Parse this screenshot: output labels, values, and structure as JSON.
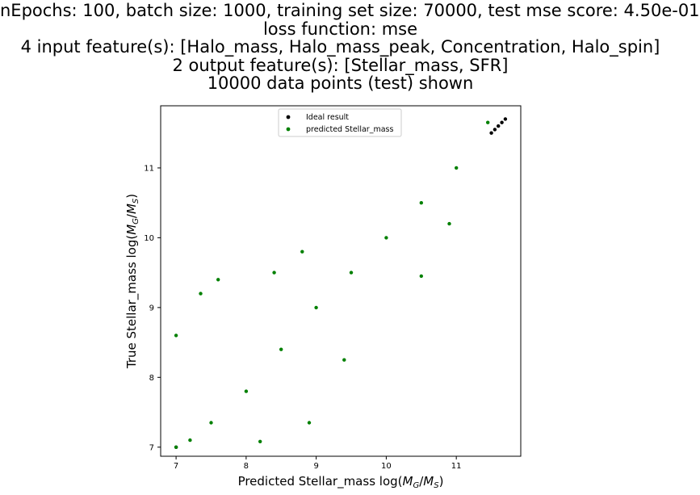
{
  "chart_data": {
    "type": "scatter",
    "title_lines": [
      "nEpochs: 100, batch size: 1000, training set size: 70000, test mse score: 4.50e-01",
      "loss function: mse",
      "4 input feature(s): [Halo_mass, Halo_mass_peak, Concentration, Halo_spin]",
      "2 output feature(s): [Stellar_mass, SFR]",
      "10000 data points (test) shown"
    ],
    "xlabel_prefix": "Predicted Stellar_mass log(",
    "ylabel_prefix": "True Stellar_mass log(",
    "label_unit": "M_G/M_S",
    "label_suffix": ")",
    "xlim": [
      6.78,
      11.92
    ],
    "ylim": [
      6.87,
      11.89
    ],
    "xticks": [
      7,
      8,
      9,
      10,
      11
    ],
    "yticks": [
      7,
      8,
      9,
      10,
      11
    ],
    "grid": false,
    "legend_position": "upper center",
    "series": [
      {
        "name": "Ideal result",
        "color": "#000000",
        "x": [
          7.0,
          11.5,
          11.55,
          11.6,
          11.65,
          11.7
        ],
        "y": [
          7.0,
          11.5,
          11.55,
          11.6,
          11.65,
          11.7
        ]
      },
      {
        "name": "predicted Stellar_mass",
        "color": "#008000",
        "x": [
          7.0,
          7.2,
          7.5,
          8.0,
          8.5,
          9.0,
          9.5,
          10.0,
          10.5,
          11.0,
          11.45,
          7.6,
          7.35,
          8.4,
          8.8,
          7.0,
          9.4,
          8.9,
          8.2,
          10.9,
          10.5
        ],
        "y": [
          7.0,
          7.1,
          7.35,
          7.8,
          8.4,
          9.0,
          9.5,
          10.0,
          10.5,
          11.0,
          11.65,
          9.4,
          9.2,
          9.5,
          9.8,
          8.6,
          8.25,
          7.35,
          7.08,
          10.2,
          9.45
        ]
      }
    ]
  }
}
